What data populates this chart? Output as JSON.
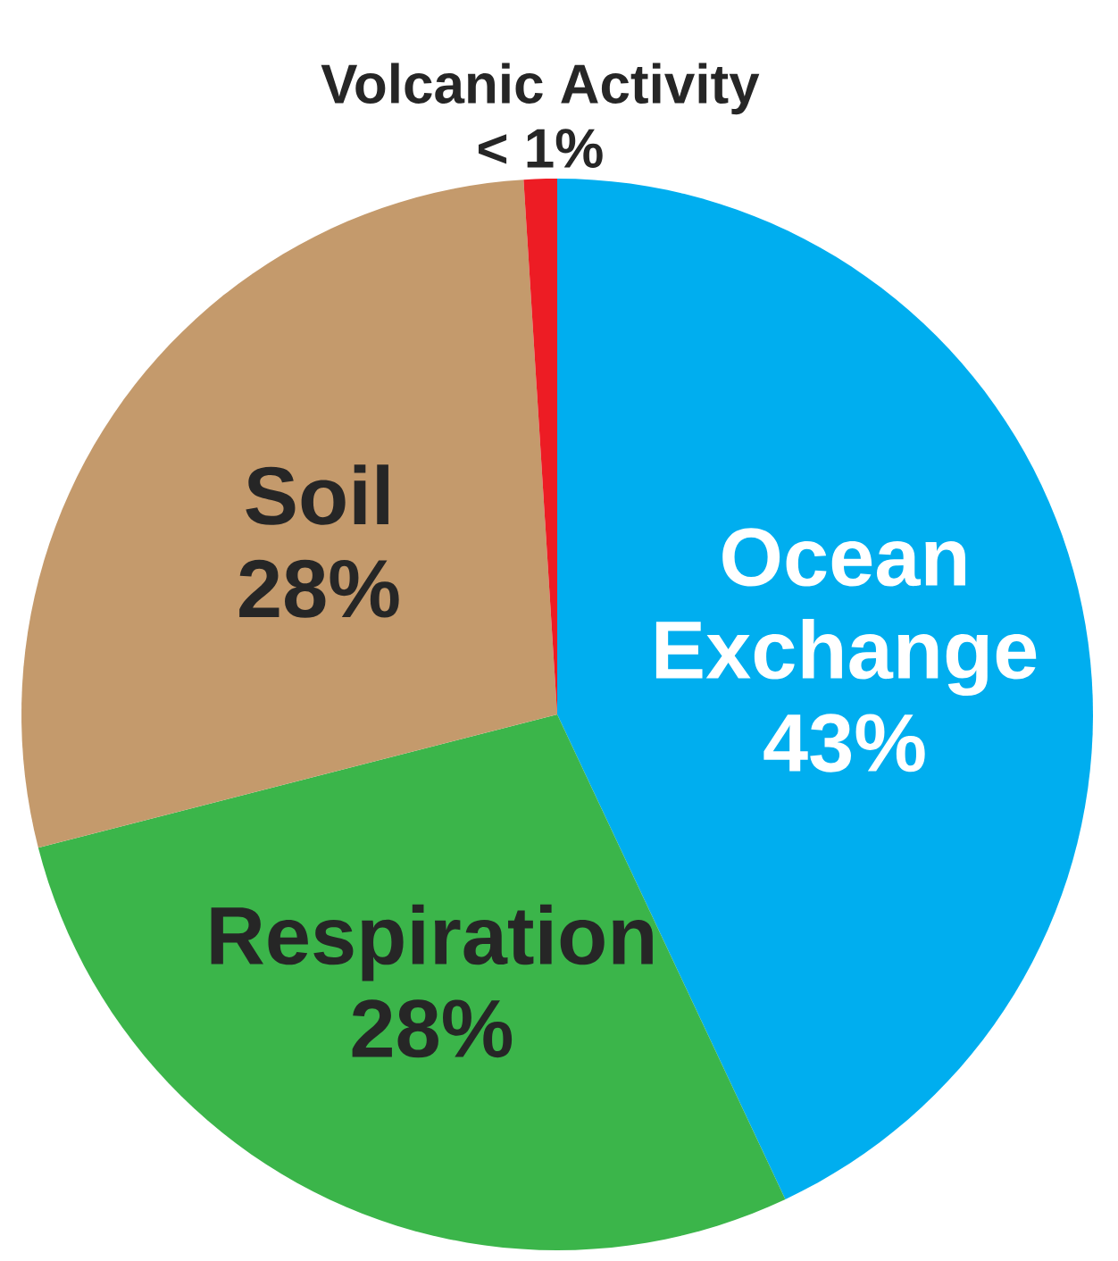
{
  "chart_data": {
    "type": "pie",
    "categories": [
      "Ocean Exchange",
      "Respiration",
      "Soil",
      "Volcanic Activity"
    ],
    "values": [
      43,
      28,
      28,
      1
    ],
    "colors": [
      "#00aeef",
      "#3bb54a",
      "#c49a6c",
      "#ed1c24"
    ],
    "value_labels": [
      "43%",
      "28%",
      "28%",
      "< 1%"
    ]
  }
}
